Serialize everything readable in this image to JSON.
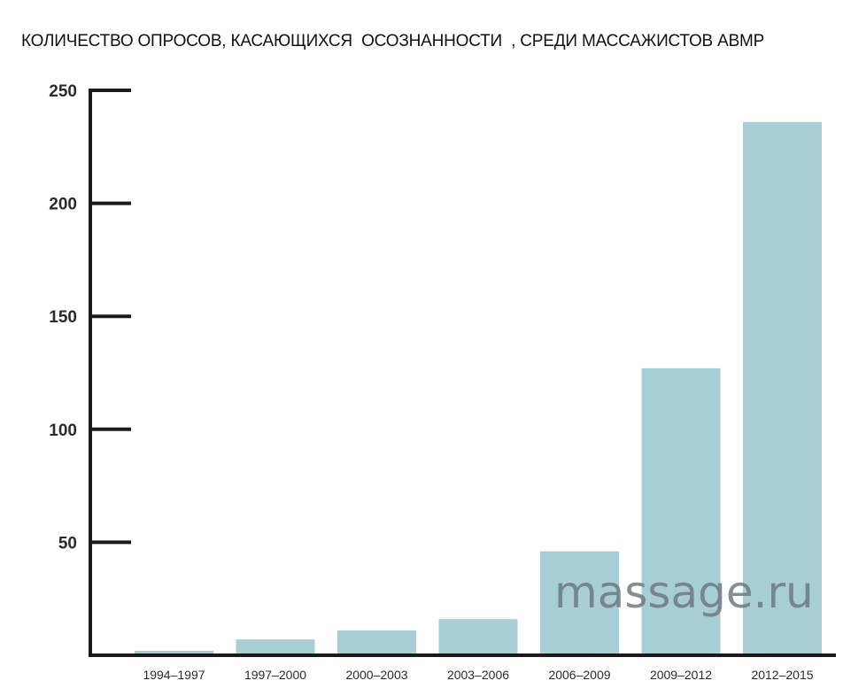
{
  "chart_data": {
    "type": "bar",
    "title": "КОЛИЧЕСТВО ОПРОСОВ, КАСАЮЩИХСЯ  ОСОЗНАННОСТИ  , СРЕДИ МАССАЖИСТОВ АВМР",
    "xlabel": "",
    "ylabel": "",
    "categories": [
      "1994–1997",
      "1997–2000",
      "2000–2003",
      "2003–2006",
      "2006–2009",
      "2009–2012",
      "2012–2015"
    ],
    "values": [
      2,
      7,
      11,
      16,
      46,
      127,
      236
    ],
    "ylim": [
      0,
      250
    ],
    "yticks": [
      50,
      100,
      150,
      200,
      250
    ],
    "bar_color": "#a7ced4",
    "axis_color": "#1a1a1a",
    "grid": false
  },
  "watermark": "massage.ru"
}
